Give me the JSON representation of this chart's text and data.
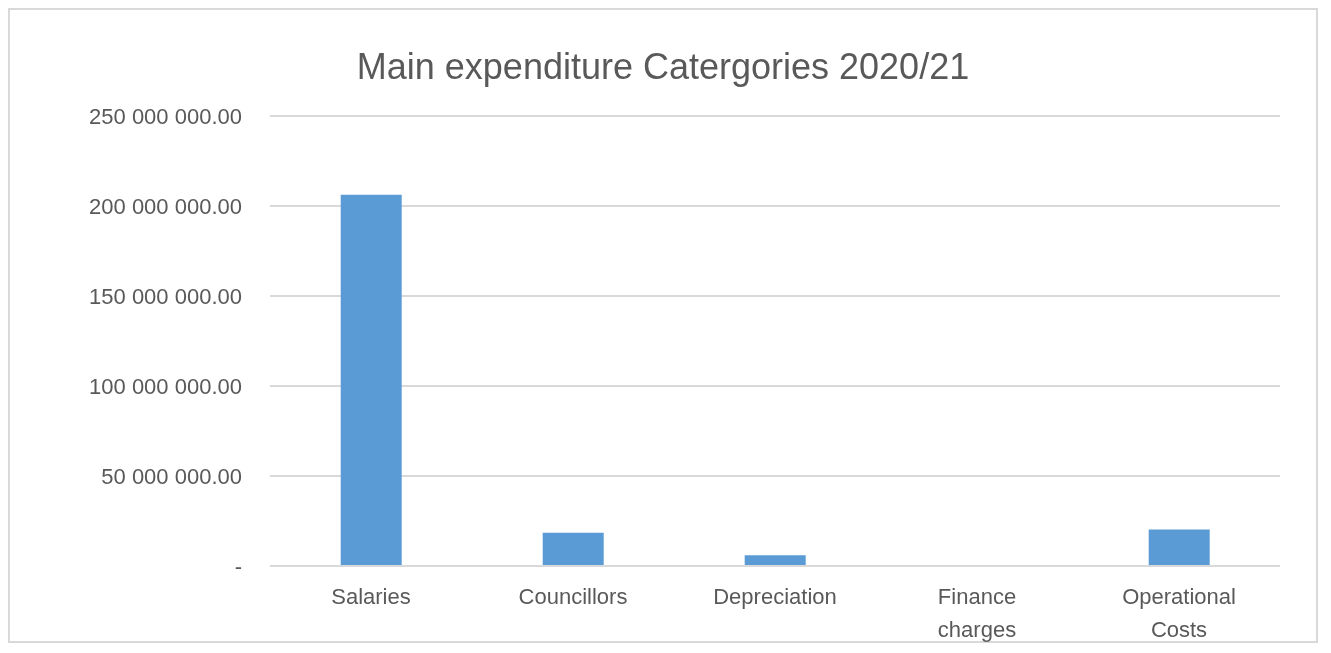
{
  "chart_data": {
    "type": "bar",
    "title": "Main expenditure Catergories 2020/21",
    "categories": [
      "Salaries",
      "Councillors",
      "Depreciation",
      "Finance charges",
      "Operational Costs"
    ],
    "values": [
      206300000,
      18500000,
      6000000,
      0,
      20300000
    ],
    "color": "#5b9bd5",
    "ylim": [
      0,
      250000000
    ],
    "yticks": [
      {
        "value": 0,
        "label": "-"
      },
      {
        "value": 50000000,
        "label": "50 000 000.00"
      },
      {
        "value": 100000000,
        "label": "100 000 000.00"
      },
      {
        "value": 150000000,
        "label": "150 000 000.00"
      },
      {
        "value": 200000000,
        "label": "200 000 000.00"
      },
      {
        "value": 250000000,
        "label": "250 000 000.00"
      }
    ],
    "grid": "y"
  }
}
